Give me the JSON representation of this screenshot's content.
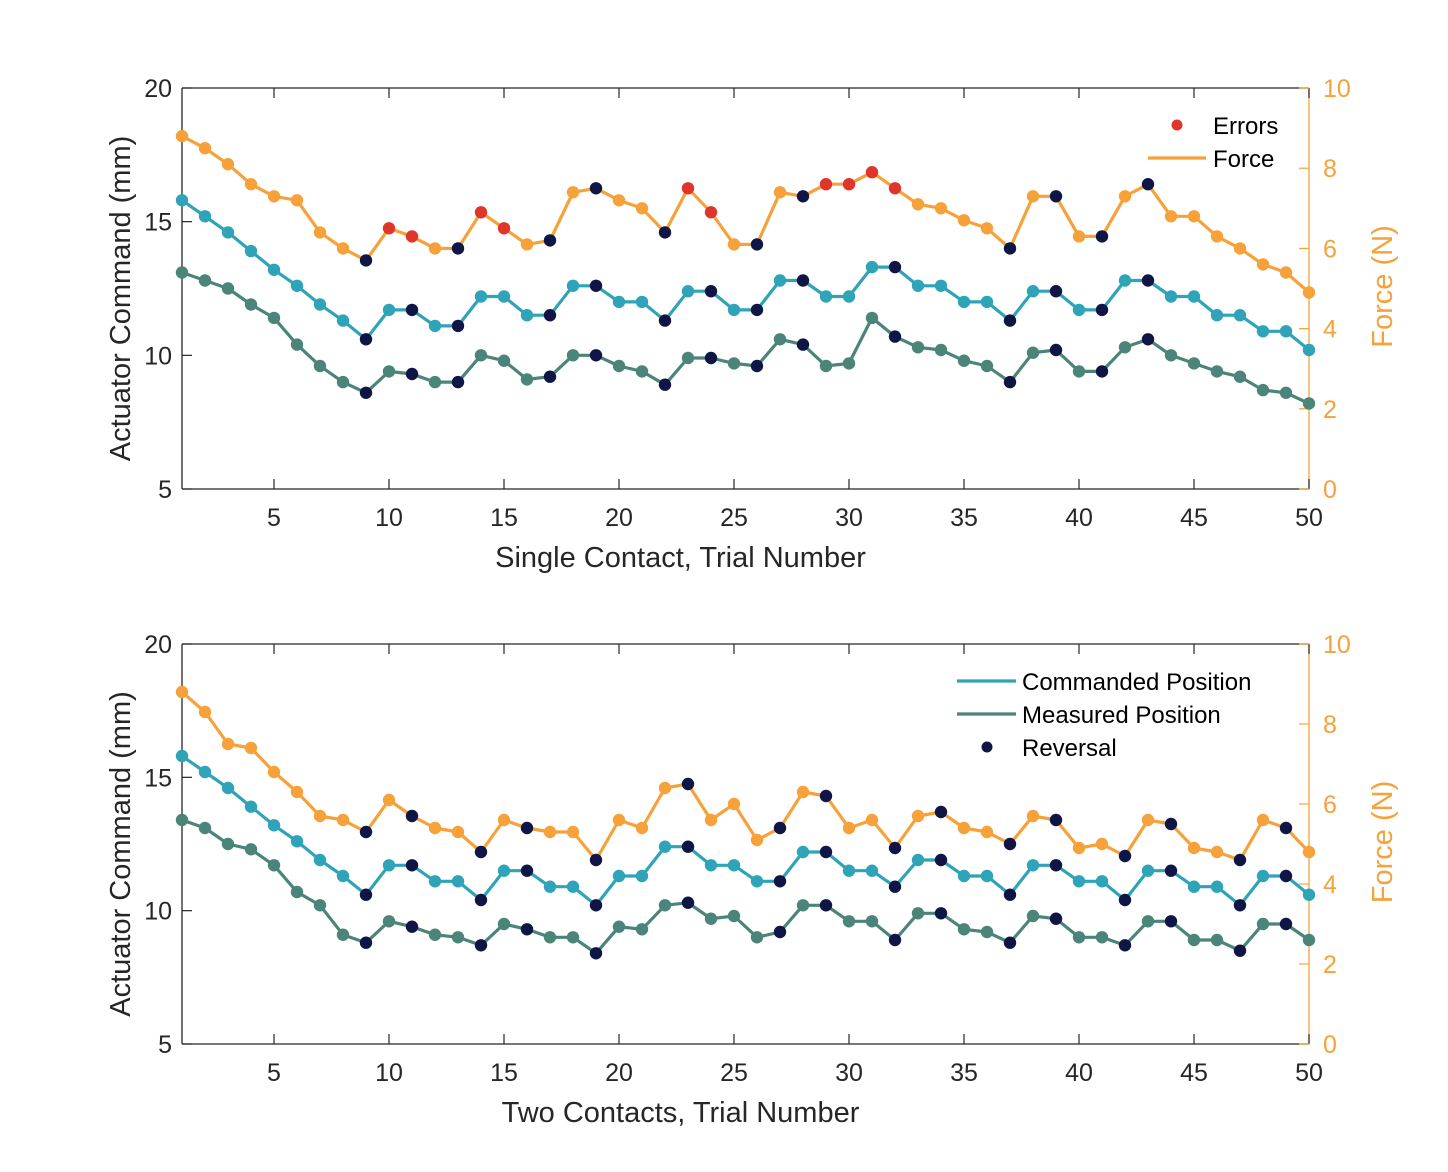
{
  "colors": {
    "commanded": "#2FA3B7",
    "measured": "#4B8479",
    "force": "#F7A13A",
    "reversal": "#0F1646",
    "error": "#E0352B",
    "axis": "#262626",
    "right_axis": "#F7A13A"
  },
  "chart_data": [
    {
      "type": "line",
      "xlabel": "Single Contact, Trial Number",
      "ylabel": "Actuator Command (mm)",
      "ylabel_right": "Force (N)",
      "xlim": [
        1,
        50
      ],
      "ylim": [
        5,
        20
      ],
      "ylim_right": [
        0,
        10
      ],
      "xticks": [
        "5",
        "10",
        "15",
        "20",
        "25",
        "30",
        "35",
        "40",
        "45",
        "50"
      ],
      "yticks": [
        "5",
        "10",
        "15",
        "20"
      ],
      "yticks_right": [
        "0",
        "2",
        "4",
        "6",
        "8",
        "10"
      ],
      "legend": {
        "position": "top-right",
        "entries": [
          {
            "label": "Errors",
            "kind": "error"
          },
          {
            "label": "Force",
            "kind": "force"
          }
        ]
      },
      "x": [
        1,
        2,
        3,
        4,
        5,
        6,
        7,
        8,
        9,
        10,
        11,
        12,
        13,
        14,
        15,
        16,
        17,
        18,
        19,
        20,
        21,
        22,
        23,
        24,
        25,
        26,
        27,
        28,
        29,
        30,
        31,
        32,
        33,
        34,
        35,
        36,
        37,
        38,
        39,
        40,
        41,
        42,
        43,
        44,
        45,
        46,
        47,
        48,
        49,
        50
      ],
      "series": [
        {
          "name": "Commanded Position",
          "axis": "left",
          "kind": "commanded",
          "values": [
            15.8,
            15.2,
            14.6,
            13.9,
            13.2,
            12.6,
            11.9,
            11.3,
            10.6,
            11.7,
            11.7,
            11.1,
            11.1,
            12.2,
            12.2,
            11.5,
            11.5,
            12.6,
            12.6,
            12.0,
            12.0,
            11.3,
            12.4,
            12.4,
            11.7,
            11.7,
            12.8,
            12.8,
            12.2,
            12.2,
            13.3,
            13.3,
            12.6,
            12.6,
            12.0,
            12.0,
            11.3,
            12.4,
            12.4,
            11.7,
            11.7,
            12.8,
            12.8,
            12.2,
            12.2,
            11.5,
            11.5,
            10.9,
            10.9,
            10.2
          ]
        },
        {
          "name": "Measured Position",
          "axis": "left",
          "kind": "measured",
          "values": [
            13.1,
            12.8,
            12.5,
            11.9,
            11.4,
            10.4,
            9.6,
            9.0,
            8.6,
            9.4,
            9.3,
            9.0,
            9.0,
            10.0,
            9.8,
            9.1,
            9.2,
            10.0,
            10.0,
            9.6,
            9.4,
            8.9,
            9.9,
            9.9,
            9.7,
            9.6,
            10.6,
            10.4,
            9.6,
            9.7,
            11.4,
            10.7,
            10.3,
            10.2,
            9.8,
            9.6,
            9.0,
            10.1,
            10.2,
            9.4,
            9.4,
            10.3,
            10.6,
            10.0,
            9.7,
            9.4,
            9.2,
            8.7,
            8.6,
            8.2
          ]
        },
        {
          "name": "Force",
          "axis": "right",
          "kind": "force",
          "values": [
            8.8,
            8.5,
            8.1,
            7.6,
            7.3,
            7.2,
            6.4,
            6.0,
            5.7,
            6.5,
            6.3,
            6.0,
            6.0,
            6.9,
            6.5,
            6.1,
            6.2,
            7.4,
            7.5,
            7.2,
            7.0,
            6.4,
            7.5,
            6.9,
            6.1,
            6.1,
            7.4,
            7.3,
            7.6,
            7.6,
            7.9,
            7.5,
            7.1,
            7.0,
            6.7,
            6.5,
            6.0,
            7.3,
            7.3,
            6.3,
            6.3,
            7.3,
            7.6,
            6.8,
            6.8,
            6.3,
            6.0,
            5.6,
            5.4,
            4.9
          ]
        }
      ],
      "reversal_trials": [
        9,
        11,
        13,
        17,
        19,
        22,
        24,
        26,
        28,
        32,
        37,
        39,
        41,
        43
      ],
      "error_trials": [
        10,
        11,
        14,
        15,
        23,
        24,
        29,
        30,
        31,
        32
      ]
    },
    {
      "type": "line",
      "xlabel": "Two Contacts, Trial Number",
      "ylabel": "Actuator Command (mm)",
      "ylabel_right": "Force (N)",
      "xlim": [
        1,
        50
      ],
      "ylim": [
        5,
        20
      ],
      "ylim_right": [
        0,
        10
      ],
      "xticks": [
        "5",
        "10",
        "15",
        "20",
        "25",
        "30",
        "35",
        "40",
        "45",
        "50"
      ],
      "yticks": [
        "5",
        "10",
        "15",
        "20"
      ],
      "yticks_right": [
        "0",
        "2",
        "4",
        "6",
        "8",
        "10"
      ],
      "legend": {
        "position": "top-right",
        "entries": [
          {
            "label": "Commanded Position",
            "kind": "commanded"
          },
          {
            "label": "Measured Position",
            "kind": "measured"
          },
          {
            "label": "Reversal",
            "kind": "reversal"
          }
        ]
      },
      "x": [
        1,
        2,
        3,
        4,
        5,
        6,
        7,
        8,
        9,
        10,
        11,
        12,
        13,
        14,
        15,
        16,
        17,
        18,
        19,
        20,
        21,
        22,
        23,
        24,
        25,
        26,
        27,
        28,
        29,
        30,
        31,
        32,
        33,
        34,
        35,
        36,
        37,
        38,
        39,
        40,
        41,
        42,
        43,
        44,
        45,
        46,
        47,
        48,
        49,
        50
      ],
      "series": [
        {
          "name": "Commanded Position",
          "axis": "left",
          "kind": "commanded",
          "values": [
            15.8,
            15.2,
            14.6,
            13.9,
            13.2,
            12.6,
            11.9,
            11.3,
            10.6,
            11.7,
            11.7,
            11.1,
            11.1,
            10.4,
            11.5,
            11.5,
            10.9,
            10.9,
            10.2,
            11.3,
            11.3,
            12.4,
            12.4,
            11.7,
            11.7,
            11.1,
            11.1,
            12.2,
            12.2,
            11.5,
            11.5,
            10.9,
            11.9,
            11.9,
            11.3,
            11.3,
            10.6,
            11.7,
            11.7,
            11.1,
            11.1,
            10.4,
            11.5,
            11.5,
            10.9,
            10.9,
            10.2,
            11.3,
            11.3,
            10.6
          ]
        },
        {
          "name": "Measured Position",
          "axis": "left",
          "kind": "measured",
          "values": [
            13.4,
            13.1,
            12.5,
            12.3,
            11.7,
            10.7,
            10.2,
            9.1,
            8.8,
            9.6,
            9.4,
            9.1,
            9.0,
            8.7,
            9.5,
            9.3,
            9.0,
            9.0,
            8.4,
            9.4,
            9.3,
            10.2,
            10.3,
            9.7,
            9.8,
            9.0,
            9.2,
            10.2,
            10.2,
            9.6,
            9.6,
            8.9,
            9.9,
            9.9,
            9.3,
            9.2,
            8.8,
            9.8,
            9.7,
            9.0,
            9.0,
            8.7,
            9.6,
            9.6,
            8.9,
            8.9,
            8.5,
            9.5,
            9.5,
            8.9
          ]
        },
        {
          "name": "Force",
          "axis": "right",
          "kind": "force",
          "values": [
            8.8,
            8.3,
            7.5,
            7.4,
            6.8,
            6.3,
            5.7,
            5.6,
            5.3,
            6.1,
            5.7,
            5.4,
            5.3,
            4.8,
            5.6,
            5.4,
            5.3,
            5.3,
            4.6,
            5.6,
            5.4,
            6.4,
            6.5,
            5.6,
            6.0,
            5.1,
            5.4,
            6.3,
            6.2,
            5.4,
            5.6,
            4.9,
            5.7,
            5.8,
            5.4,
            5.3,
            5.0,
            5.7,
            5.6,
            4.9,
            5.0,
            4.7,
            5.6,
            5.5,
            4.9,
            4.8,
            4.6,
            5.6,
            5.4,
            4.8
          ]
        }
      ],
      "reversal_trials": [
        9,
        11,
        14,
        16,
        19,
        23,
        27,
        29,
        32,
        34,
        37,
        39,
        42,
        44,
        47,
        49
      ],
      "error_trials": []
    }
  ]
}
